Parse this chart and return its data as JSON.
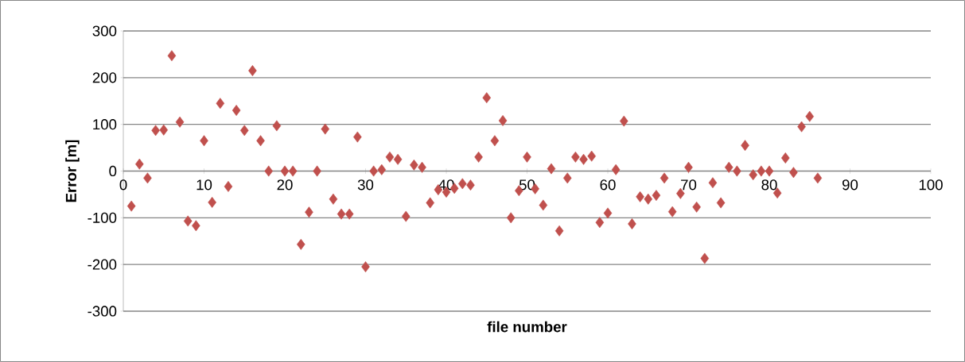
{
  "chart_data": {
    "type": "scatter",
    "xlabel": "file number",
    "ylabel": "Error [m]",
    "x": [
      1,
      2,
      3,
      4,
      5,
      6,
      7,
      8,
      9,
      10,
      11,
      12,
      13,
      14,
      15,
      16,
      17,
      18,
      19,
      20,
      21,
      22,
      23,
      24,
      25,
      26,
      27,
      28,
      29,
      30,
      31,
      32,
      33,
      34,
      35,
      36,
      37,
      38,
      39,
      40,
      41,
      42,
      43,
      44,
      45,
      46,
      47,
      48,
      49,
      50,
      51,
      52,
      53,
      54,
      55,
      56,
      57,
      58,
      59,
      60,
      61,
      62,
      63,
      64,
      65,
      66,
      67,
      68,
      69,
      70,
      71,
      72,
      73,
      74,
      75,
      76,
      77,
      78,
      79,
      80,
      81,
      82,
      83,
      84,
      85,
      86
    ],
    "values": [
      -75,
      15,
      -15,
      87,
      88,
      247,
      105,
      -107,
      -117,
      65,
      -67,
      145,
      -33,
      130,
      87,
      215,
      65,
      0,
      97,
      0,
      0,
      -157,
      -88,
      0,
      90,
      -60,
      -92,
      -92,
      73,
      -205,
      0,
      3,
      30,
      25,
      -97,
      13,
      8,
      -68,
      -40,
      -45,
      -37,
      -27,
      -30,
      30,
      157,
      65,
      108,
      -100,
      -42,
      30,
      -38,
      -73,
      5,
      -128,
      -15,
      30,
      25,
      32,
      -110,
      -90,
      3,
      107,
      -113,
      -55,
      -60,
      -52,
      -15,
      -87,
      -48,
      8,
      -77,
      -187,
      -25,
      -68,
      8,
      0,
      55,
      -8,
      0,
      0,
      -47,
      28,
      -3,
      95,
      117,
      -15
    ],
    "color": "#c0504d",
    "marker": "diamond",
    "xlim": [
      0,
      100
    ],
    "ylim": [
      -300,
      300
    ],
    "xticks": [
      0,
      10,
      20,
      30,
      40,
      50,
      60,
      70,
      80,
      90,
      100
    ],
    "yticks": [
      -300,
      -200,
      -100,
      0,
      100,
      200,
      300
    ],
    "grid": "y"
  }
}
